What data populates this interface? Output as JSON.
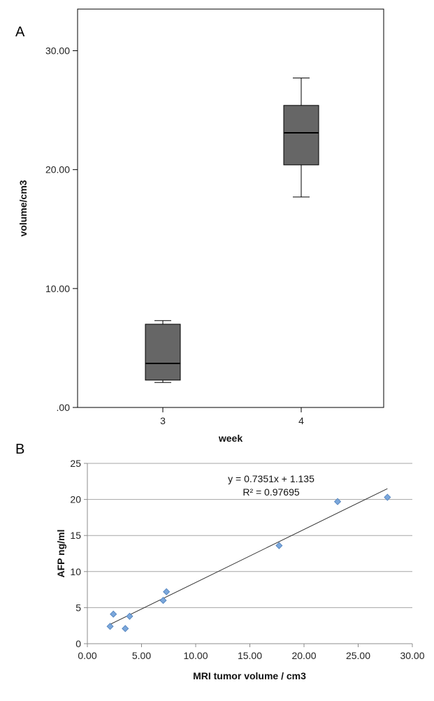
{
  "colors": {
    "box_fill": "#666666",
    "box_stroke": "#000000",
    "marker_fill": "#7ba7db",
    "marker_stroke": "#4f81bd",
    "gridline": "#a6a6a6",
    "trendline": "#333333"
  },
  "chart_data": [
    {
      "type": "box",
      "panel_label": "A",
      "xlabel": "week",
      "ylabel": "volume/cm3",
      "ylim": [
        0,
        33.5
      ],
      "yticks": [
        0,
        10,
        20,
        30
      ],
      "ytick_labels": [
        ".00",
        "10.00",
        "20.00",
        "30.00"
      ],
      "grid": false,
      "categories": [
        "3",
        "4"
      ],
      "boxes": [
        {
          "category": "3",
          "whisker_low": 2.1,
          "q1": 2.3,
          "median": 3.7,
          "q3": 7.0,
          "whisker_high": 7.3
        },
        {
          "category": "4",
          "whisker_low": 17.7,
          "q1": 20.4,
          "median": 23.1,
          "q3": 25.4,
          "whisker_high": 27.7
        }
      ]
    },
    {
      "type": "scatter",
      "panel_label": "B",
      "xlabel": "MRI tumor volume / cm3",
      "ylabel": "AFP ng/ml",
      "xlim": [
        0,
        30
      ],
      "ylim": [
        0,
        25
      ],
      "xticks": [
        0,
        5,
        10,
        15,
        20,
        25,
        30
      ],
      "xtick_labels": [
        "0.00",
        "5.00",
        "10.00",
        "15.00",
        "20.00",
        "25.00",
        "30.00"
      ],
      "yticks": [
        0,
        5,
        10,
        15,
        20,
        25
      ],
      "ytick_labels": [
        "0",
        "5",
        "10",
        "15",
        "20",
        "25"
      ],
      "grid": true,
      "points": [
        {
          "x": 2.1,
          "y": 2.4
        },
        {
          "x": 2.4,
          "y": 4.1
        },
        {
          "x": 3.5,
          "y": 2.1
        },
        {
          "x": 3.9,
          "y": 3.8
        },
        {
          "x": 7.0,
          "y": 6.0
        },
        {
          "x": 7.3,
          "y": 7.2
        },
        {
          "x": 17.7,
          "y": 13.6
        },
        {
          "x": 23.1,
          "y": 19.7
        },
        {
          "x": 27.7,
          "y": 20.3
        }
      ],
      "trendline": {
        "slope": 0.7351,
        "intercept": 1.135,
        "x_range": [
          2.0,
          27.7
        ],
        "equation_label": "y = 0.7351x + 1.135",
        "r2_label": "R² = 0.97695"
      }
    }
  ]
}
